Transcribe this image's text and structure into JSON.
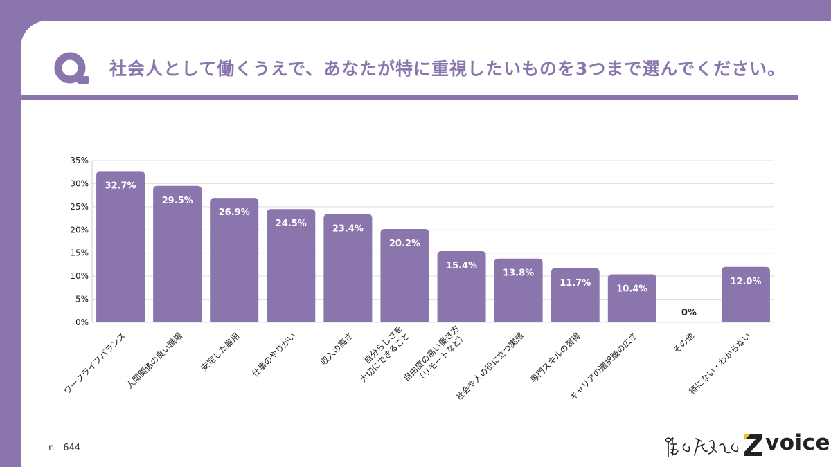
{
  "header": {
    "q_icon": "q-letter-icon",
    "question": "社会人として働くうえで、あなたが特に重視したいものを3つまで選んでください。"
  },
  "footer": {
    "sample": "n＝644",
    "brand_handwritten": "僕と私と",
    "brand_logo_icon": "z-mark-icon",
    "brand_name": "voice"
  },
  "colors": {
    "accent": "#8a76ad",
    "grid": "#dddddd",
    "label": "#222222"
  },
  "chart_data": {
    "type": "bar",
    "categories": [
      "ワークライフバランス",
      "人間関係の良い職場",
      "安定した雇用",
      "仕事のやりがい",
      "収入の高さ",
      "自分らしさを\n大切にできること",
      "自由度の高い働き方\n（リモートなど）",
      "社会や人の役に立つ実感",
      "専門スキルの習得",
      "キャリアの選択肢の広さ",
      "その他",
      "特にない・わからない"
    ],
    "values": [
      32.7,
      29.5,
      26.9,
      24.5,
      23.4,
      20.2,
      15.4,
      13.8,
      11.7,
      10.4,
      0,
      12.0
    ],
    "data_labels": [
      "32.7%",
      "29.5%",
      "26.9%",
      "24.5%",
      "23.4%",
      "20.2%",
      "15.4%",
      "13.8%",
      "11.7%",
      "10.4%",
      "0%",
      "12.0%"
    ],
    "y_ticks": [
      "0%",
      "5%",
      "10%",
      "15%",
      "20%",
      "25%",
      "30%",
      "35%"
    ],
    "ylim": [
      0,
      35
    ],
    "grid": true,
    "legend": "none"
  }
}
